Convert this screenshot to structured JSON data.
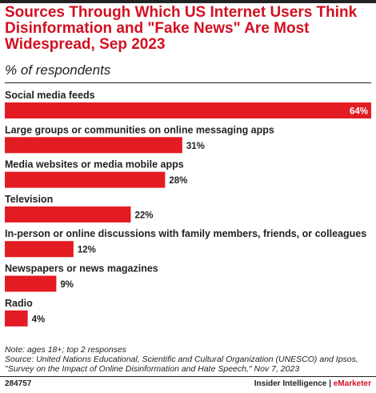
{
  "title": "Sources Through Which US Internet Users Think Disinformation and \"Fake News\" Are Most Widespread, Sep 2023",
  "subtitle": "% of respondents",
  "chart_data": {
    "type": "bar",
    "orientation": "horizontal",
    "categories": [
      "Social media feeds",
      "Large groups or communities on online messaging apps",
      "Media websites or media mobile apps",
      "Television",
      "In-person or online discussions with family members, friends, or colleagues",
      "Newspapers or news magazines",
      "Radio"
    ],
    "values": [
      64,
      31,
      28,
      22,
      12,
      9,
      4
    ],
    "value_labels": [
      "64%",
      "31%",
      "28%",
      "22%",
      "12%",
      "9%",
      "4%"
    ],
    "xlim": [
      0,
      64
    ],
    "grid": false,
    "bar_color": "#e31b23"
  },
  "note_line1": "Note: ages 18+; top 2 responses",
  "note_line2": "Source: United Nations Educational, Scientific and Cultural Organization (UNESCO) and Ipsos, \"Survey on the Impact of Online Disinformation and Hate Speech,\" Nov 7, 2023",
  "footer": {
    "chart_id": "284757",
    "credit_main": "Insider Intelligence",
    "credit_sep": " | ",
    "credit_brand": "eMarketer"
  }
}
